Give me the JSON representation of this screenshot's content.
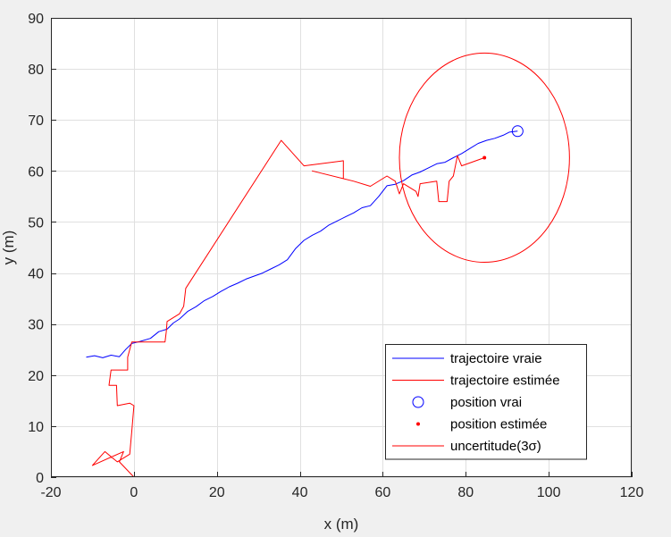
{
  "chart_data": {
    "type": "line",
    "xlabel": "x (m)",
    "ylabel": "y (m)",
    "xlim": [
      -20,
      120
    ],
    "ylim": [
      0,
      90
    ],
    "xticks": [
      -20,
      0,
      20,
      40,
      60,
      80,
      100,
      120
    ],
    "yticks": [
      0,
      10,
      20,
      30,
      40,
      50,
      60,
      70,
      80,
      90
    ],
    "grid": true,
    "legend_position": "bottom-right",
    "colors": {
      "true": "#0000ff",
      "estimated": "#ff0000",
      "uncertainty": "#ff0000"
    },
    "series": [
      {
        "name": "trajectoire vraie",
        "style": "line",
        "color": "#0000ff",
        "points": [
          [
            -11.5,
            23.5
          ],
          [
            -9.5,
            23.8
          ],
          [
            -7.5,
            23.4
          ],
          [
            -5.5,
            23.9
          ],
          [
            -3.5,
            23.6
          ],
          [
            -2,
            25
          ],
          [
            -0.5,
            26.2
          ],
          [
            1.5,
            26.6
          ],
          [
            4,
            27.2
          ],
          [
            6,
            28.5
          ],
          [
            8,
            29
          ],
          [
            9.5,
            30.2
          ],
          [
            11,
            31
          ],
          [
            13,
            32.5
          ],
          [
            15,
            33.4
          ],
          [
            17,
            34.6
          ],
          [
            19,
            35.4
          ],
          [
            21,
            36.4
          ],
          [
            23,
            37.3
          ],
          [
            25,
            38
          ],
          [
            27,
            38.8
          ],
          [
            29,
            39.4
          ],
          [
            31,
            40
          ],
          [
            33,
            40.8
          ],
          [
            35,
            41.6
          ],
          [
            37,
            42.6
          ],
          [
            39,
            44.8
          ],
          [
            41,
            46.4
          ],
          [
            43,
            47.4
          ],
          [
            45,
            48.2
          ],
          [
            47,
            49.4
          ],
          [
            49,
            50.2
          ],
          [
            51,
            51
          ],
          [
            53,
            51.8
          ],
          [
            55,
            52.8
          ],
          [
            57,
            53.2
          ],
          [
            59,
            55
          ],
          [
            61,
            57.1
          ],
          [
            63,
            57.4
          ],
          [
            65,
            58.1
          ],
          [
            67,
            59.2
          ],
          [
            69,
            59.8
          ],
          [
            71,
            60.6
          ],
          [
            73,
            61.4
          ],
          [
            75,
            61.7
          ],
          [
            77,
            62.6
          ],
          [
            79,
            63.4
          ],
          [
            81,
            64.4
          ],
          [
            83,
            65.4
          ],
          [
            85,
            66
          ],
          [
            87,
            66.4
          ],
          [
            89,
            67
          ],
          [
            90.5,
            67.6
          ],
          [
            92.5,
            67.8
          ]
        ]
      },
      {
        "name": "trajectoire estimée",
        "style": "line",
        "color": "#ff0000",
        "points": [
          [
            0,
            0
          ],
          [
            -3.5,
            3
          ],
          [
            -2.5,
            5
          ],
          [
            -10,
            2.3
          ],
          [
            -7,
            5
          ],
          [
            -4,
            3
          ],
          [
            -1,
            4.5
          ],
          [
            -0.5,
            9
          ],
          [
            0,
            14
          ],
          [
            -1,
            14.5
          ],
          [
            -4,
            14
          ],
          [
            -4.2,
            18
          ],
          [
            -6,
            18
          ],
          [
            -5.5,
            21
          ],
          [
            -1.5,
            21
          ],
          [
            -1.5,
            23.5
          ],
          [
            -0.5,
            26.5
          ],
          [
            2,
            26.5
          ],
          [
            7.5,
            26.5
          ],
          [
            7.8,
            28.5
          ],
          [
            8,
            30.5
          ],
          [
            11,
            32
          ],
          [
            12,
            33.5
          ],
          [
            12.5,
            37
          ],
          [
            35.5,
            66
          ],
          [
            41,
            61
          ],
          [
            50.5,
            62
          ],
          [
            50.5,
            58.5
          ],
          [
            43,
            60
          ],
          [
            53,
            58
          ],
          [
            57,
            57
          ],
          [
            61,
            59
          ],
          [
            63,
            58
          ],
          [
            64,
            55.5
          ],
          [
            65,
            57.5
          ],
          [
            68,
            56
          ],
          [
            68.5,
            55
          ],
          [
            69,
            57.5
          ],
          [
            73,
            58
          ],
          [
            73.5,
            54
          ],
          [
            75.5,
            54
          ],
          [
            76,
            58
          ],
          [
            77,
            59
          ],
          [
            78,
            63
          ],
          [
            79,
            61
          ],
          [
            84.5,
            62.6
          ]
        ]
      },
      {
        "name": "position vrai",
        "style": "marker-circle",
        "color": "#0000ff",
        "points": [
          [
            92.5,
            67.8
          ]
        ]
      },
      {
        "name": "position estimée",
        "style": "marker-dot",
        "color": "#ff0000",
        "points": [
          [
            84.5,
            62.6
          ]
        ]
      },
      {
        "name": "uncertitude(3σ)",
        "style": "ellipse",
        "color": "#ff0000",
        "center": [
          84.5,
          62.6
        ],
        "radii": [
          20.5,
          20.5
        ]
      }
    ],
    "legend": [
      {
        "label": "trajectoire vraie",
        "kind": "line",
        "color": "#0000ff"
      },
      {
        "label": "trajectoire estimée",
        "kind": "line",
        "color": "#ff0000"
      },
      {
        "label": "position vrai",
        "kind": "circle",
        "color": "#0000ff"
      },
      {
        "label": "position estimée",
        "kind": "dot",
        "color": "#ff0000"
      },
      {
        "label": "uncertitude(3σ)",
        "kind": "line",
        "color": "#ff0000"
      }
    ]
  }
}
